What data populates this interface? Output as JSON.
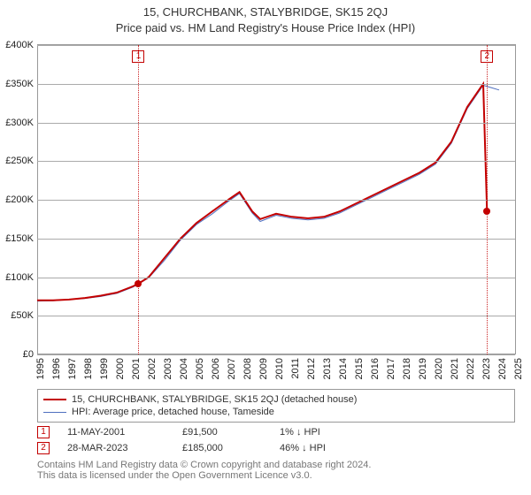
{
  "titles": {
    "main": "15, CHURCHBANK, STALYBRIDGE, SK15 2QJ",
    "sub": "Price paid vs. HM Land Registry's House Price Index (HPI)"
  },
  "axes": {
    "y": {
      "min": 0,
      "max": 400000,
      "step": 50000,
      "labels": [
        "£0",
        "£50K",
        "£100K",
        "£150K",
        "£200K",
        "£250K",
        "£300K",
        "£350K",
        "£400K"
      ]
    },
    "x": {
      "min": 1995,
      "max": 2025,
      "step": 1,
      "labels": [
        "1995",
        "1996",
        "1997",
        "1998",
        "1999",
        "2000",
        "2001",
        "2002",
        "2003",
        "2004",
        "2005",
        "2006",
        "2007",
        "2008",
        "2009",
        "2010",
        "2011",
        "2012",
        "2013",
        "2014",
        "2015",
        "2016",
        "2017",
        "2018",
        "2019",
        "2020",
        "2021",
        "2022",
        "2023",
        "2024",
        "2025"
      ]
    }
  },
  "colors": {
    "series_property": "#c30000",
    "series_hpi": "#4f6fbf",
    "grid": "#aaaaaa",
    "axis": "#999999",
    "marker_fill": "#c30000",
    "footer_text": "#777777"
  },
  "line_width": {
    "property": 2,
    "hpi": 1
  },
  "series": {
    "property": [
      [
        1995.0,
        70000
      ],
      [
        1996.0,
        70000
      ],
      [
        1997.0,
        71000
      ],
      [
        1998.0,
        73000
      ],
      [
        1999.0,
        76000
      ],
      [
        2000.0,
        80000
      ],
      [
        2001.0,
        88000
      ],
      [
        2001.36,
        91500
      ],
      [
        2002.0,
        100000
      ],
      [
        2003.0,
        125000
      ],
      [
        2004.0,
        150000
      ],
      [
        2005.0,
        170000
      ],
      [
        2006.0,
        185000
      ],
      [
        2007.0,
        200000
      ],
      [
        2007.7,
        210000
      ],
      [
        2008.5,
        185000
      ],
      [
        2009.0,
        175000
      ],
      [
        2010.0,
        182000
      ],
      [
        2011.0,
        178000
      ],
      [
        2012.0,
        176000
      ],
      [
        2013.0,
        178000
      ],
      [
        2014.0,
        185000
      ],
      [
        2015.0,
        195000
      ],
      [
        2016.0,
        205000
      ],
      [
        2017.0,
        215000
      ],
      [
        2018.0,
        225000
      ],
      [
        2019.0,
        235000
      ],
      [
        2020.0,
        248000
      ],
      [
        2021.0,
        275000
      ],
      [
        2022.0,
        320000
      ],
      [
        2023.0,
        350000
      ],
      [
        2023.24,
        185000
      ]
    ],
    "hpi": [
      [
        1995.0,
        69000
      ],
      [
        1996.0,
        69500
      ],
      [
        1997.0,
        71000
      ],
      [
        1998.0,
        72500
      ],
      [
        1999.0,
        75000
      ],
      [
        2000.0,
        79000
      ],
      [
        2001.0,
        87000
      ],
      [
        2002.0,
        99000
      ],
      [
        2003.0,
        122000
      ],
      [
        2004.0,
        148000
      ],
      [
        2005.0,
        168000
      ],
      [
        2006.0,
        182000
      ],
      [
        2007.0,
        198000
      ],
      [
        2007.7,
        208000
      ],
      [
        2008.5,
        183000
      ],
      [
        2009.0,
        172000
      ],
      [
        2010.0,
        180000
      ],
      [
        2011.0,
        176000
      ],
      [
        2012.0,
        174000
      ],
      [
        2013.0,
        176000
      ],
      [
        2014.0,
        183000
      ],
      [
        2015.0,
        193000
      ],
      [
        2016.0,
        203000
      ],
      [
        2017.0,
        213000
      ],
      [
        2018.0,
        223000
      ],
      [
        2019.0,
        233000
      ],
      [
        2020.0,
        246000
      ],
      [
        2021.0,
        273000
      ],
      [
        2022.0,
        318000
      ],
      [
        2023.0,
        348000
      ],
      [
        2023.5,
        345000
      ],
      [
        2024.0,
        342000
      ]
    ]
  },
  "transactions": [
    {
      "n": "1",
      "date": "11-MAY-2001",
      "x": 2001.36,
      "price": 91500,
      "price_label": "£91,500",
      "pct": "1% ↓ HPI",
      "color": "#c30000"
    },
    {
      "n": "2",
      "date": "28-MAR-2023",
      "x": 2023.24,
      "price": 185000,
      "price_label": "£185,000",
      "pct": "46% ↓ HPI",
      "color": "#c30000"
    }
  ],
  "legend": [
    {
      "color": "#c30000",
      "width": 2,
      "label": "15, CHURCHBANK, STALYBRIDGE, SK15 2QJ (detached house)"
    },
    {
      "color": "#4f6fbf",
      "width": 1,
      "label": "HPI: Average price, detached house, Tameside"
    }
  ],
  "footer": {
    "line1": "Contains HM Land Registry data © Crown copyright and database right 2024.",
    "line2": "This data is licensed under the Open Government Licence v3.0."
  }
}
